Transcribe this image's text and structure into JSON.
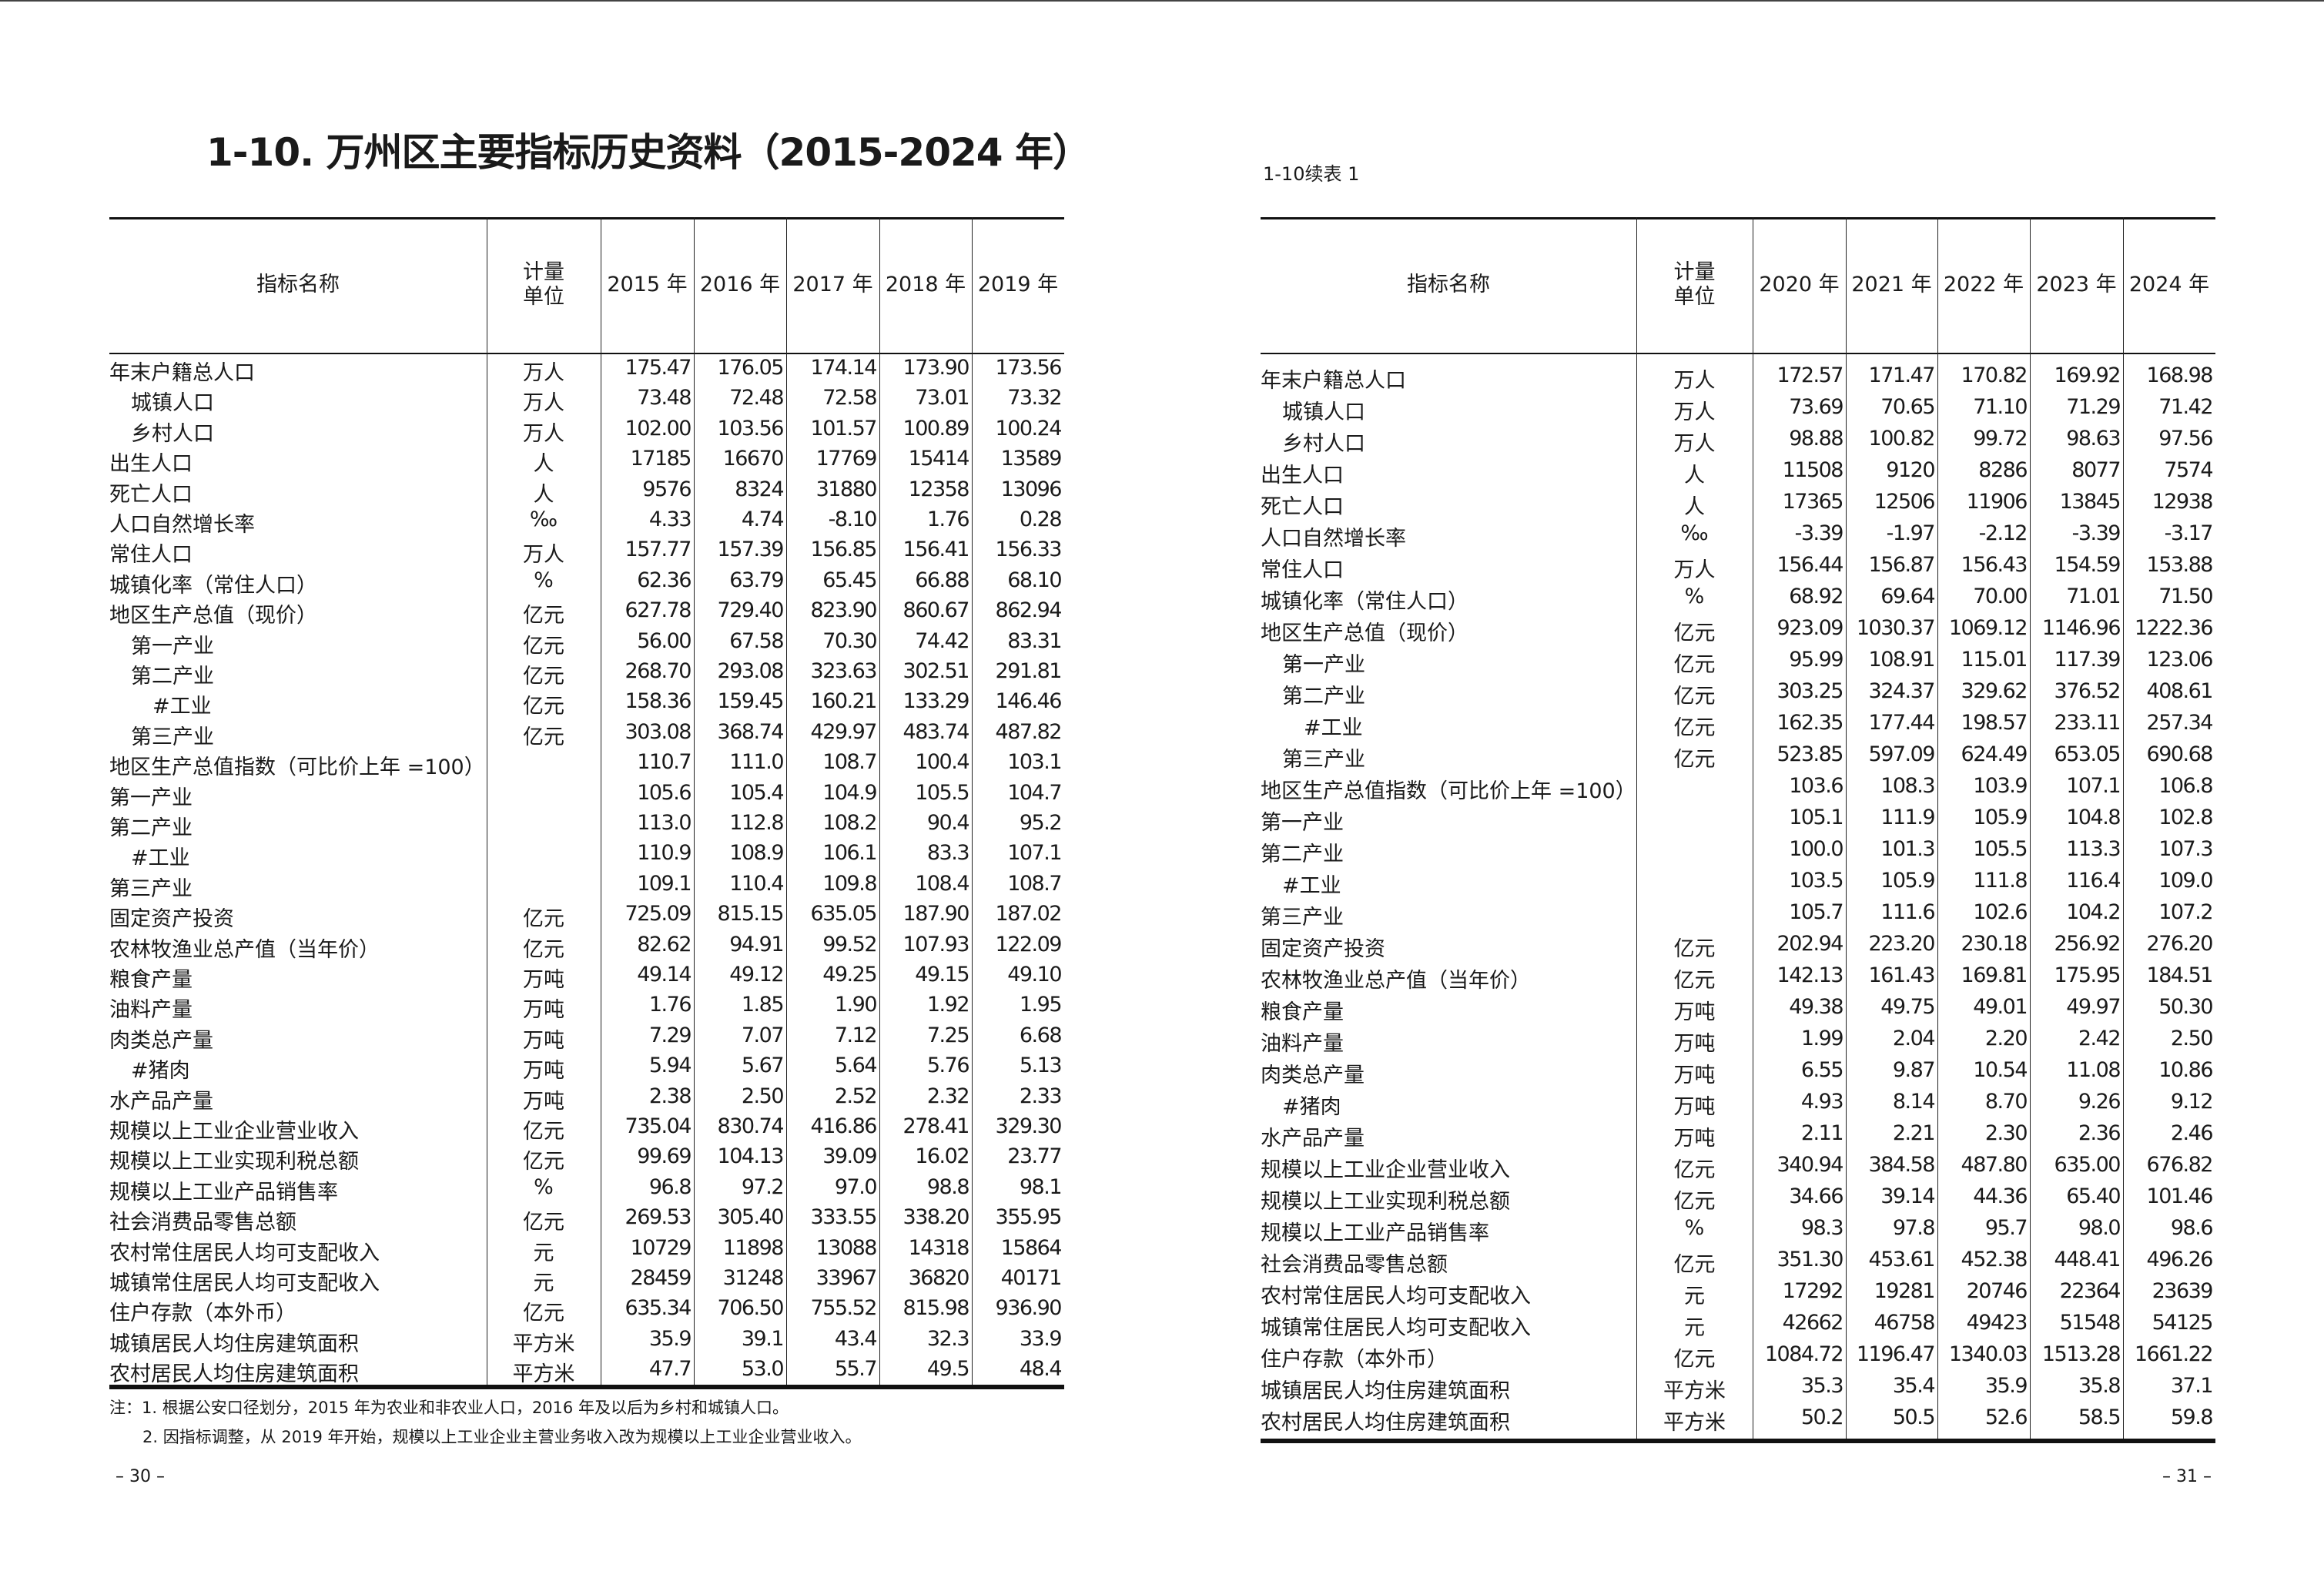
{
  "left_page": {
    "title": "1-10. 万州区主要指标历史资料（2015-2024 年）",
    "header": {
      "indicator": "指标名称",
      "unit": "计量单位",
      "years": [
        "2015 年",
        "2016 年",
        "2017 年",
        "2018 年",
        "2019 年"
      ]
    },
    "rows": [
      {
        "name": "年末户籍总人口",
        "level": 0,
        "unit": "万人",
        "values": [
          "175.47",
          "176.05",
          "174.14",
          "173.90",
          "173.56"
        ]
      },
      {
        "name": "城镇人口",
        "level": 1,
        "unit": "万人",
        "values": [
          "73.48",
          "72.48",
          "72.58",
          "73.01",
          "73.32"
        ]
      },
      {
        "name": "乡村人口",
        "level": 1,
        "unit": "万人",
        "values": [
          "102.00",
          "103.56",
          "101.57",
          "100.89",
          "100.24"
        ]
      },
      {
        "name": "出生人口",
        "level": 0,
        "unit": "人",
        "values": [
          "17185",
          "16670",
          "17769",
          "15414",
          "13589"
        ]
      },
      {
        "name": "死亡人口",
        "level": 0,
        "unit": "人",
        "values": [
          "9576",
          "8324",
          "31880",
          "12358",
          "13096"
        ]
      },
      {
        "name": "人口自然增长率",
        "level": 0,
        "unit": "‰",
        "values": [
          "4.33",
          "4.74",
          "-8.10",
          "1.76",
          "0.28"
        ]
      },
      {
        "name": "常住人口",
        "level": 0,
        "unit": "万人",
        "values": [
          "157.77",
          "157.39",
          "156.85",
          "156.41",
          "156.33"
        ]
      },
      {
        "name": "城镇化率（常住人口）",
        "level": 0,
        "unit": "%",
        "values": [
          "62.36",
          "63.79",
          "65.45",
          "66.88",
          "68.10"
        ]
      },
      {
        "name": "地区生产总值（现价）",
        "level": 0,
        "unit": "亿元",
        "values": [
          "627.78",
          "729.40",
          "823.90",
          "860.67",
          "862.94"
        ]
      },
      {
        "name": "第一产业",
        "level": 1,
        "unit": "亿元",
        "values": [
          "56.00",
          "67.58",
          "70.30",
          "74.42",
          "83.31"
        ]
      },
      {
        "name": "第二产业",
        "level": 1,
        "unit": "亿元",
        "values": [
          "268.70",
          "293.08",
          "323.63",
          "302.51",
          "291.81"
        ]
      },
      {
        "name": "#工业",
        "level": 2,
        "unit": "亿元",
        "values": [
          "158.36",
          "159.45",
          "160.21",
          "133.29",
          "146.46"
        ]
      },
      {
        "name": "第三产业",
        "level": 1,
        "unit": "亿元",
        "values": [
          "303.08",
          "368.74",
          "429.97",
          "483.74",
          "487.82"
        ]
      },
      {
        "name": "地区生产总值指数（可比价上年 =100）",
        "level": 0,
        "unit": "",
        "values": [
          "110.7",
          "111.0",
          "108.7",
          "100.4",
          "103.1"
        ]
      },
      {
        "name": "第一产业",
        "level": 0,
        "unit": "",
        "values": [
          "105.6",
          "105.4",
          "104.9",
          "105.5",
          "104.7"
        ]
      },
      {
        "name": "第二产业",
        "level": 0,
        "unit": "",
        "values": [
          "113.0",
          "112.8",
          "108.2",
          "90.4",
          "95.2"
        ]
      },
      {
        "name": "#工业",
        "level": 1,
        "unit": "",
        "values": [
          "110.9",
          "108.9",
          "106.1",
          "83.3",
          "107.1"
        ]
      },
      {
        "name": "第三产业",
        "level": 0,
        "unit": "",
        "values": [
          "109.1",
          "110.4",
          "109.8",
          "108.4",
          "108.7"
        ]
      },
      {
        "name": "固定资产投资",
        "level": 0,
        "unit": "亿元",
        "values": [
          "725.09",
          "815.15",
          "635.05",
          "187.90",
          "187.02"
        ]
      },
      {
        "name": "农林牧渔业总产值（当年价）",
        "level": 0,
        "unit": "亿元",
        "values": [
          "82.62",
          "94.91",
          "99.52",
          "107.93",
          "122.09"
        ]
      },
      {
        "name": "粮食产量",
        "level": 0,
        "unit": "万吨",
        "values": [
          "49.14",
          "49.12",
          "49.25",
          "49.15",
          "49.10"
        ]
      },
      {
        "name": "油料产量",
        "level": 0,
        "unit": "万吨",
        "values": [
          "1.76",
          "1.85",
          "1.90",
          "1.92",
          "1.95"
        ]
      },
      {
        "name": "肉类总产量",
        "level": 0,
        "unit": "万吨",
        "values": [
          "7.29",
          "7.07",
          "7.12",
          "7.25",
          "6.68"
        ]
      },
      {
        "name": "#猪肉",
        "level": 1,
        "unit": "万吨",
        "values": [
          "5.94",
          "5.67",
          "5.64",
          "5.76",
          "5.13"
        ]
      },
      {
        "name": "水产品产量",
        "level": 0,
        "unit": "万吨",
        "values": [
          "2.38",
          "2.50",
          "2.52",
          "2.32",
          "2.33"
        ]
      },
      {
        "name": "规模以上工业企业营业收入",
        "level": 0,
        "unit": "亿元",
        "values": [
          "735.04",
          "830.74",
          "416.86",
          "278.41",
          "329.30"
        ]
      },
      {
        "name": "规模以上工业实现利税总额",
        "level": 0,
        "unit": "亿元",
        "values": [
          "99.69",
          "104.13",
          "39.09",
          "16.02",
          "23.77"
        ]
      },
      {
        "name": "规模以上工业产品销售率",
        "level": 0,
        "unit": "%",
        "values": [
          "96.8",
          "97.2",
          "97.0",
          "98.8",
          "98.1"
        ]
      },
      {
        "name": "社会消费品零售总额",
        "level": 0,
        "unit": "亿元",
        "values": [
          "269.53",
          "305.40",
          "333.55",
          "338.20",
          "355.95"
        ]
      },
      {
        "name": "农村常住居民人均可支配收入",
        "level": 0,
        "unit": "元",
        "values": [
          "10729",
          "11898",
          "13088",
          "14318",
          "15864"
        ]
      },
      {
        "name": "城镇常住居民人均可支配收入",
        "level": 0,
        "unit": "元",
        "values": [
          "28459",
          "31248",
          "33967",
          "36820",
          "40171"
        ]
      },
      {
        "name": "住户存款（本外币）",
        "level": 0,
        "unit": "亿元",
        "values": [
          "635.34",
          "706.50",
          "755.52",
          "815.98",
          "936.90"
        ]
      },
      {
        "name": "城镇居民人均住房建筑面积",
        "level": 0,
        "unit": "平方米",
        "values": [
          "35.9",
          "39.1",
          "43.4",
          "32.3",
          "33.9"
        ]
      },
      {
        "name": "农村居民人均住房建筑面积",
        "level": 0,
        "unit": "平方米",
        "values": [
          "47.7",
          "53.0",
          "55.7",
          "49.5",
          "48.4"
        ]
      }
    ],
    "notes": [
      "注：1. 根据公安口径划分，2015 年为农业和非农业人口，2016 年及以后为乡村和城镇人口。",
      "2. 因指标调整，从 2019 年开始，规模以上工业企业主营业务收入改为规模以上工业企业营业收入。"
    ],
    "page_number": "– 30 –"
  },
  "right_page": {
    "subtitle": "1-10续表 1",
    "header": {
      "indicator": "指标名称",
      "unit": "计量单位",
      "years": [
        "2020 年",
        "2021 年",
        "2022 年",
        "2023 年",
        "2024 年"
      ]
    },
    "rows": [
      {
        "name": "年末户籍总人口",
        "level": 0,
        "unit": "万人",
        "values": [
          "172.57",
          "171.47",
          "170.82",
          "169.92",
          "168.98"
        ]
      },
      {
        "name": "城镇人口",
        "level": 1,
        "unit": "万人",
        "values": [
          "73.69",
          "70.65",
          "71.10",
          "71.29",
          "71.42"
        ]
      },
      {
        "name": "乡村人口",
        "level": 1,
        "unit": "万人",
        "values": [
          "98.88",
          "100.82",
          "99.72",
          "98.63",
          "97.56"
        ]
      },
      {
        "name": "出生人口",
        "level": 0,
        "unit": "人",
        "values": [
          "11508",
          "9120",
          "8286",
          "8077",
          "7574"
        ]
      },
      {
        "name": "死亡人口",
        "level": 0,
        "unit": "人",
        "values": [
          "17365",
          "12506",
          "11906",
          "13845",
          "12938"
        ]
      },
      {
        "name": "人口自然增长率",
        "level": 0,
        "unit": "‰",
        "values": [
          "-3.39",
          "-1.97",
          "-2.12",
          "-3.39",
          "-3.17"
        ]
      },
      {
        "name": "常住人口",
        "level": 0,
        "unit": "万人",
        "values": [
          "156.44",
          "156.87",
          "156.43",
          "154.59",
          "153.88"
        ]
      },
      {
        "name": "城镇化率（常住人口）",
        "level": 0,
        "unit": "%",
        "values": [
          "68.92",
          "69.64",
          "70.00",
          "71.01",
          "71.50"
        ]
      },
      {
        "name": "地区生产总值（现价）",
        "level": 0,
        "unit": "亿元",
        "values": [
          "923.09",
          "1030.37",
          "1069.12",
          "1146.96",
          "1222.36"
        ]
      },
      {
        "name": "第一产业",
        "level": 1,
        "unit": "亿元",
        "values": [
          "95.99",
          "108.91",
          "115.01",
          "117.39",
          "123.06"
        ]
      },
      {
        "name": "第二产业",
        "level": 1,
        "unit": "亿元",
        "values": [
          "303.25",
          "324.37",
          "329.62",
          "376.52",
          "408.61"
        ]
      },
      {
        "name": "#工业",
        "level": 2,
        "unit": "亿元",
        "values": [
          "162.35",
          "177.44",
          "198.57",
          "233.11",
          "257.34"
        ]
      },
      {
        "name": "第三产业",
        "level": 1,
        "unit": "亿元",
        "values": [
          "523.85",
          "597.09",
          "624.49",
          "653.05",
          "690.68"
        ]
      },
      {
        "name": "地区生产总值指数（可比价上年 =100）",
        "level": 0,
        "unit": "",
        "values": [
          "103.6",
          "108.3",
          "103.9",
          "107.1",
          "106.8"
        ]
      },
      {
        "name": "第一产业",
        "level": 0,
        "unit": "",
        "values": [
          "105.1",
          "111.9",
          "105.9",
          "104.8",
          "102.8"
        ]
      },
      {
        "name": "第二产业",
        "level": 0,
        "unit": "",
        "values": [
          "100.0",
          "101.3",
          "105.5",
          "113.3",
          "107.3"
        ]
      },
      {
        "name": "#工业",
        "level": 1,
        "unit": "",
        "values": [
          "103.5",
          "105.9",
          "111.8",
          "116.4",
          "109.0"
        ]
      },
      {
        "name": "第三产业",
        "level": 0,
        "unit": "",
        "values": [
          "105.7",
          "111.6",
          "102.6",
          "104.2",
          "107.2"
        ]
      },
      {
        "name": "固定资产投资",
        "level": 0,
        "unit": "亿元",
        "values": [
          "202.94",
          "223.20",
          "230.18",
          "256.92",
          "276.20"
        ]
      },
      {
        "name": "农林牧渔业总产值（当年价）",
        "level": 0,
        "unit": "亿元",
        "values": [
          "142.13",
          "161.43",
          "169.81",
          "175.95",
          "184.51"
        ]
      },
      {
        "name": "粮食产量",
        "level": 0,
        "unit": "万吨",
        "values": [
          "49.38",
          "49.75",
          "49.01",
          "49.97",
          "50.30"
        ]
      },
      {
        "name": "油料产量",
        "level": 0,
        "unit": "万吨",
        "values": [
          "1.99",
          "2.04",
          "2.20",
          "2.42",
          "2.50"
        ]
      },
      {
        "name": "肉类总产量",
        "level": 0,
        "unit": "万吨",
        "values": [
          "6.55",
          "9.87",
          "10.54",
          "11.08",
          "10.86"
        ]
      },
      {
        "name": "#猪肉",
        "level": 1,
        "unit": "万吨",
        "values": [
          "4.93",
          "8.14",
          "8.70",
          "9.26",
          "9.12"
        ]
      },
      {
        "name": "水产品产量",
        "level": 0,
        "unit": "万吨",
        "values": [
          "2.11",
          "2.21",
          "2.30",
          "2.36",
          "2.46"
        ]
      },
      {
        "name": "规模以上工业企业营业收入",
        "level": 0,
        "unit": "亿元",
        "values": [
          "340.94",
          "384.58",
          "487.80",
          "635.00",
          "676.82"
        ]
      },
      {
        "name": "规模以上工业实现利税总额",
        "level": 0,
        "unit": "亿元",
        "values": [
          "34.66",
          "39.14",
          "44.36",
          "65.40",
          "101.46"
        ]
      },
      {
        "name": "规模以上工业产品销售率",
        "level": 0,
        "unit": "%",
        "values": [
          "98.3",
          "97.8",
          "95.7",
          "98.0",
          "98.6"
        ]
      },
      {
        "name": "社会消费品零售总额",
        "level": 0,
        "unit": "亿元",
        "values": [
          "351.30",
          "453.61",
          "452.38",
          "448.41",
          "496.26"
        ]
      },
      {
        "name": "农村常住居民人均可支配收入",
        "level": 0,
        "unit": "元",
        "values": [
          "17292",
          "19281",
          "20746",
          "22364",
          "23639"
        ]
      },
      {
        "name": "城镇常住居民人均可支配收入",
        "level": 0,
        "unit": "元",
        "values": [
          "42662",
          "46758",
          "49423",
          "51548",
          "54125"
        ]
      },
      {
        "name": "住户存款（本外币）",
        "level": 0,
        "unit": "亿元",
        "values": [
          "1084.72",
          "1196.47",
          "1340.03",
          "1513.28",
          "1661.22"
        ]
      },
      {
        "name": "城镇居民人均住房建筑面积",
        "level": 0,
        "unit": "平方米",
        "values": [
          "35.3",
          "35.4",
          "35.9",
          "35.8",
          "37.1"
        ]
      },
      {
        "name": "农村居民人均住房建筑面积",
        "level": 0,
        "unit": "平方米",
        "values": [
          "50.2",
          "50.5",
          "52.6",
          "58.5",
          "59.8"
        ]
      }
    ],
    "page_number": "– 31 –"
  }
}
